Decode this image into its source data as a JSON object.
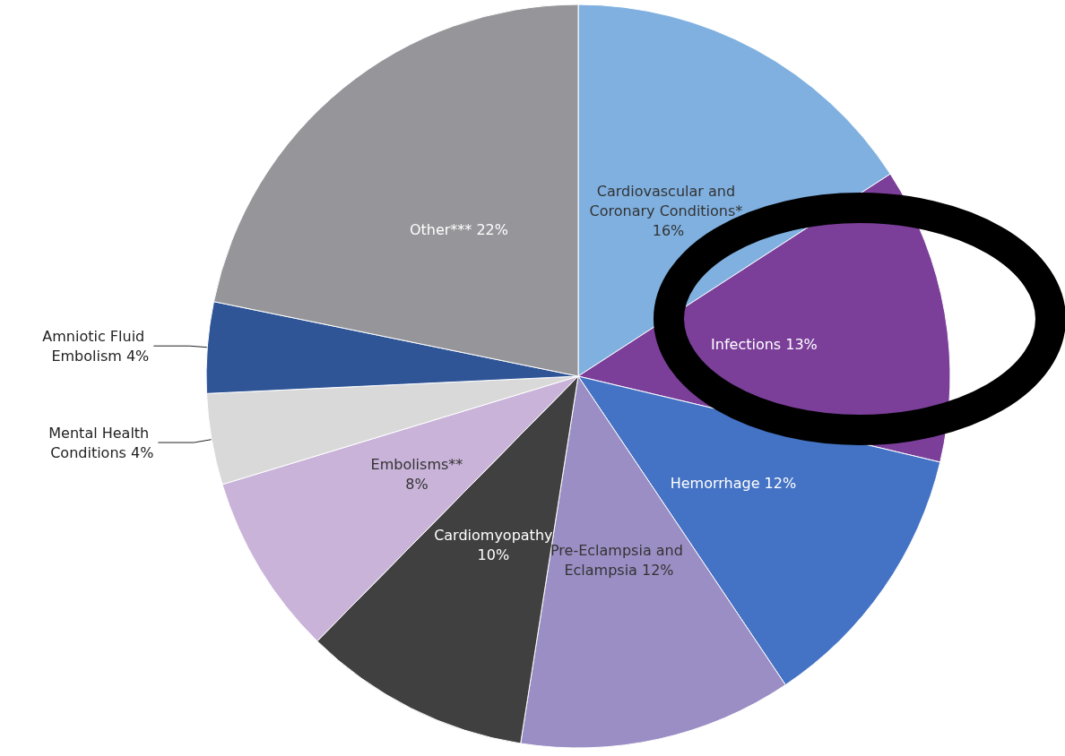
{
  "chart_data": {
    "type": "pie",
    "categories": [
      "Cardiovascular and Coronary Conditions*",
      "Infections",
      "Hemorrhage",
      "Pre-Eclampsia and Eclampsia",
      "Cardiomyopathy",
      "Embolisms**",
      "Mental Health Conditions",
      "Amniotic Fluid Embolism",
      "Other***"
    ],
    "values": [
      16,
      13,
      12,
      12,
      10,
      8,
      4,
      4,
      22
    ],
    "colors": [
      "#7fb0e0",
      "#7b3f9a",
      "#4472c4",
      "#9b8ec4",
      "#404040",
      "#c9b3d9",
      "#d9d9d9",
      "#2f5597",
      "#95959a"
    ],
    "value_labels": [
      "16%",
      "13%",
      "12%",
      "12%",
      "10%",
      "8%",
      "4%",
      "4%",
      "22%"
    ],
    "legend": false
  }
}
